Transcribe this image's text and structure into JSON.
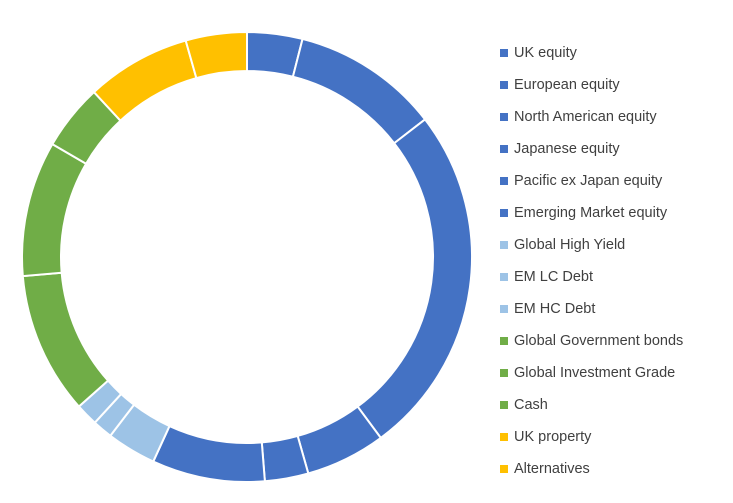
{
  "chart_data": {
    "type": "pie",
    "variant": "doughnut",
    "title": "",
    "legend_position": "right",
    "categories": [
      "UK equity",
      "European equity",
      "North American equity",
      "Japanese equity",
      "Pacific ex Japan equity",
      "Emerging Market equity",
      "Global High Yield",
      "EM LC Debt",
      "EM HC Debt",
      "Global Government bonds",
      "Global Investment Grade",
      "Cash",
      "UK property",
      "Alternatives"
    ],
    "values": [
      4.7,
      12.5,
      30.0,
      6.8,
      3.7,
      9.6,
      4.2,
      1.7,
      1.9,
      12.1,
      11.5,
      5.6,
      8.9,
      5.2
    ],
    "colors": [
      "#4472C4",
      "#4472C4",
      "#4472C4",
      "#4472C4",
      "#4472C4",
      "#4472C4",
      "#9DC3E6",
      "#9DC3E6",
      "#9DC3E6",
      "#70AD47",
      "#70AD47",
      "#70AD47",
      "#FFC000",
      "#FFC000"
    ]
  }
}
